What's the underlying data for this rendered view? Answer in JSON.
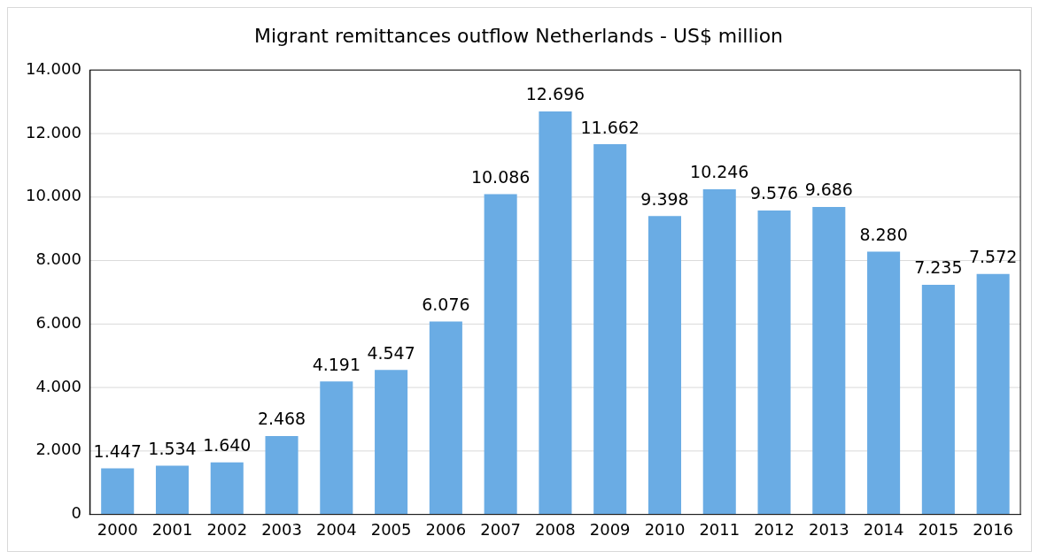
{
  "chart_data": {
    "type": "bar",
    "title": "Migrant remittances outflow Netherlands - US$ million",
    "categories": [
      "2000",
      "2001",
      "2002",
      "2003",
      "2004",
      "2005",
      "2006",
      "2007",
      "2008",
      "2009",
      "2010",
      "2011",
      "2012",
      "2013",
      "2014",
      "2015",
      "2016"
    ],
    "values": [
      1447,
      1534,
      1640,
      2468,
      4191,
      4547,
      6076,
      10086,
      12696,
      11662,
      9398,
      10246,
      9576,
      9686,
      8280,
      7235,
      7572
    ],
    "value_labels": [
      "1.447",
      "1.534",
      "1.640",
      "2.468",
      "4.191",
      "4.547",
      "6.076",
      "10.086",
      "12.696",
      "11.662",
      "9.398",
      "10.246",
      "9.576",
      "9.686",
      "8.280",
      "7.235",
      "7.572"
    ],
    "color": "#6aace4",
    "ylim": [
      0,
      14000
    ],
    "yticks": [
      {
        "value": 0,
        "label": "0"
      },
      {
        "value": 2000,
        "label": "2.000"
      },
      {
        "value": 4000,
        "label": "4.000"
      },
      {
        "value": 6000,
        "label": "6.000"
      },
      {
        "value": 8000,
        "label": "8.000"
      },
      {
        "value": 10000,
        "label": "10.000"
      },
      {
        "value": 12000,
        "label": "12.000"
      },
      {
        "value": 14000,
        "label": "14.000"
      }
    ],
    "grid": "y",
    "legend": false
  }
}
